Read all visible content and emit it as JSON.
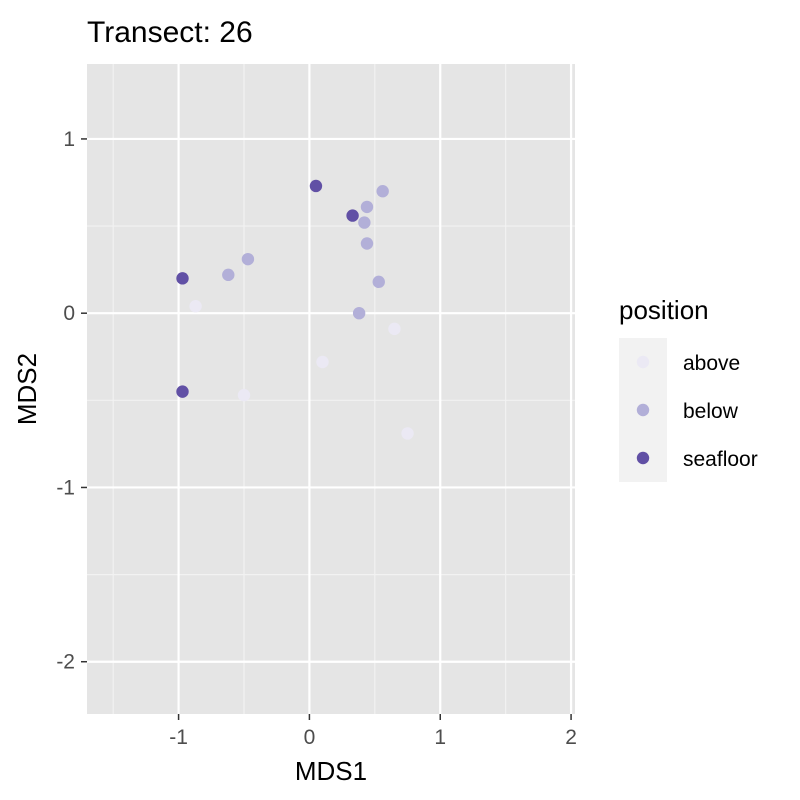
{
  "chart_data": {
    "type": "scatter",
    "title": "Transect: 26",
    "xlabel": "MDS1",
    "ylabel": "MDS2",
    "xlim": [
      -1.7,
      2.03
    ],
    "ylim": [
      -2.3,
      1.43
    ],
    "x_ticks": [
      -1,
      0,
      1,
      2
    ],
    "y_ticks": [
      -2,
      -1,
      0,
      1
    ],
    "x_tick_labels": [
      "-1",
      "0",
      "1",
      "2"
    ],
    "y_tick_labels": [
      "-2",
      "-1",
      "0",
      "1"
    ],
    "grid": true,
    "legend": {
      "title": "position",
      "placement": "right"
    },
    "series": [
      {
        "name": "above",
        "color": "#ebe9f4",
        "points": [
          {
            "x": -0.87,
            "y": 0.04
          },
          {
            "x": -0.5,
            "y": -0.47
          },
          {
            "x": 0.1,
            "y": -0.28
          },
          {
            "x": 0.65,
            "y": -0.09
          },
          {
            "x": 0.75,
            "y": -0.69
          }
        ]
      },
      {
        "name": "below",
        "color": "#b2afd8",
        "points": [
          {
            "x": -0.62,
            "y": 0.22
          },
          {
            "x": -0.47,
            "y": 0.31
          },
          {
            "x": 0.38,
            "y": 0.0
          },
          {
            "x": 0.42,
            "y": 0.52
          },
          {
            "x": 0.44,
            "y": 0.61
          },
          {
            "x": 0.44,
            "y": 0.4
          },
          {
            "x": 0.53,
            "y": 0.18
          },
          {
            "x": 0.56,
            "y": 0.7
          }
        ]
      },
      {
        "name": "seafloor",
        "color": "#6150a5",
        "points": [
          {
            "x": -0.97,
            "y": 0.2
          },
          {
            "x": -0.97,
            "y": -0.45
          },
          {
            "x": 0.05,
            "y": 0.73
          },
          {
            "x": 0.33,
            "y": 0.56
          }
        ]
      }
    ]
  }
}
